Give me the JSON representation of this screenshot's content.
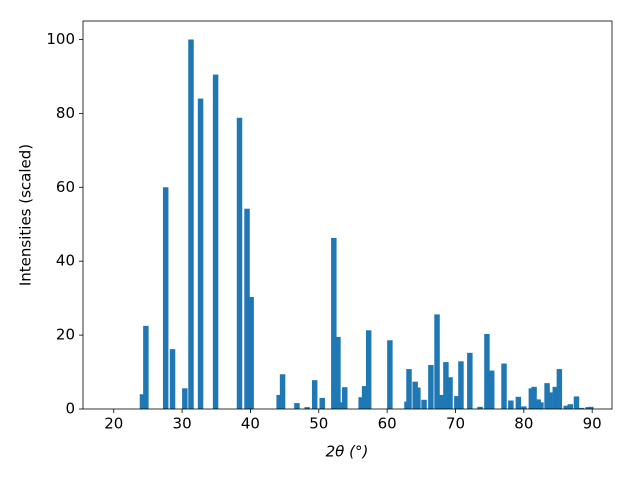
{
  "chart_data": {
    "type": "bar",
    "xlabel": "2θ (°)",
    "ylabel": "Intensities (scaled)",
    "color": "#1f77b4",
    "x": [
      24.2,
      24.7,
      27.6,
      28.6,
      30.4,
      31.3,
      32.7,
      34.9,
      38.4,
      39.5,
      40.1,
      44.2,
      44.7,
      46.8,
      48.3,
      49.4,
      50.5,
      52.2,
      52.8,
      53.2,
      53.8,
      56.2,
      56.7,
      57.3,
      60.4,
      62.9,
      63.2,
      64.1,
      64.5,
      65.4,
      66.4,
      67.3,
      67.9,
      68.6,
      69.2,
      70.2,
      70.8,
      72.1,
      73.6,
      74.6,
      75.3,
      77.1,
      78.1,
      79.2,
      80.0,
      81.1,
      81.5,
      82.1,
      82.5,
      83.4,
      83.8,
      84.6,
      85.2,
      86.2,
      86.8,
      87.7,
      88.4,
      89.4,
      89.8
    ],
    "values": [
      4,
      22.5,
      60,
      16.2,
      5.6,
      100,
      84,
      90.5,
      78.8,
      54.2,
      30.3,
      3.8,
      9.4,
      1.6,
      0.5,
      7.8,
      3,
      46.3,
      19.5,
      1.8,
      5.9,
      3.2,
      6.2,
      21.3,
      18.6,
      2,
      10.8,
      7.4,
      5.8,
      2.5,
      11.9,
      25.6,
      3.8,
      12.7,
      8.6,
      3.5,
      12.9,
      15.2,
      0.6,
      20.3,
      10.4,
      12.3,
      2.3,
      3.3,
      0.7,
      5.6,
      6,
      2.6,
      1.8,
      7,
      4.5,
      6,
      10.8,
      0.9,
      1.3,
      3.4,
      0.3,
      0.5,
      0.6
    ],
    "xlim": [
      15.5,
      92.9
    ],
    "ylim": [
      0,
      105
    ],
    "xticks": [
      20,
      30,
      40,
      50,
      60,
      70,
      80,
      90
    ],
    "yticks": [
      0,
      20,
      40,
      60,
      80,
      100
    ]
  }
}
